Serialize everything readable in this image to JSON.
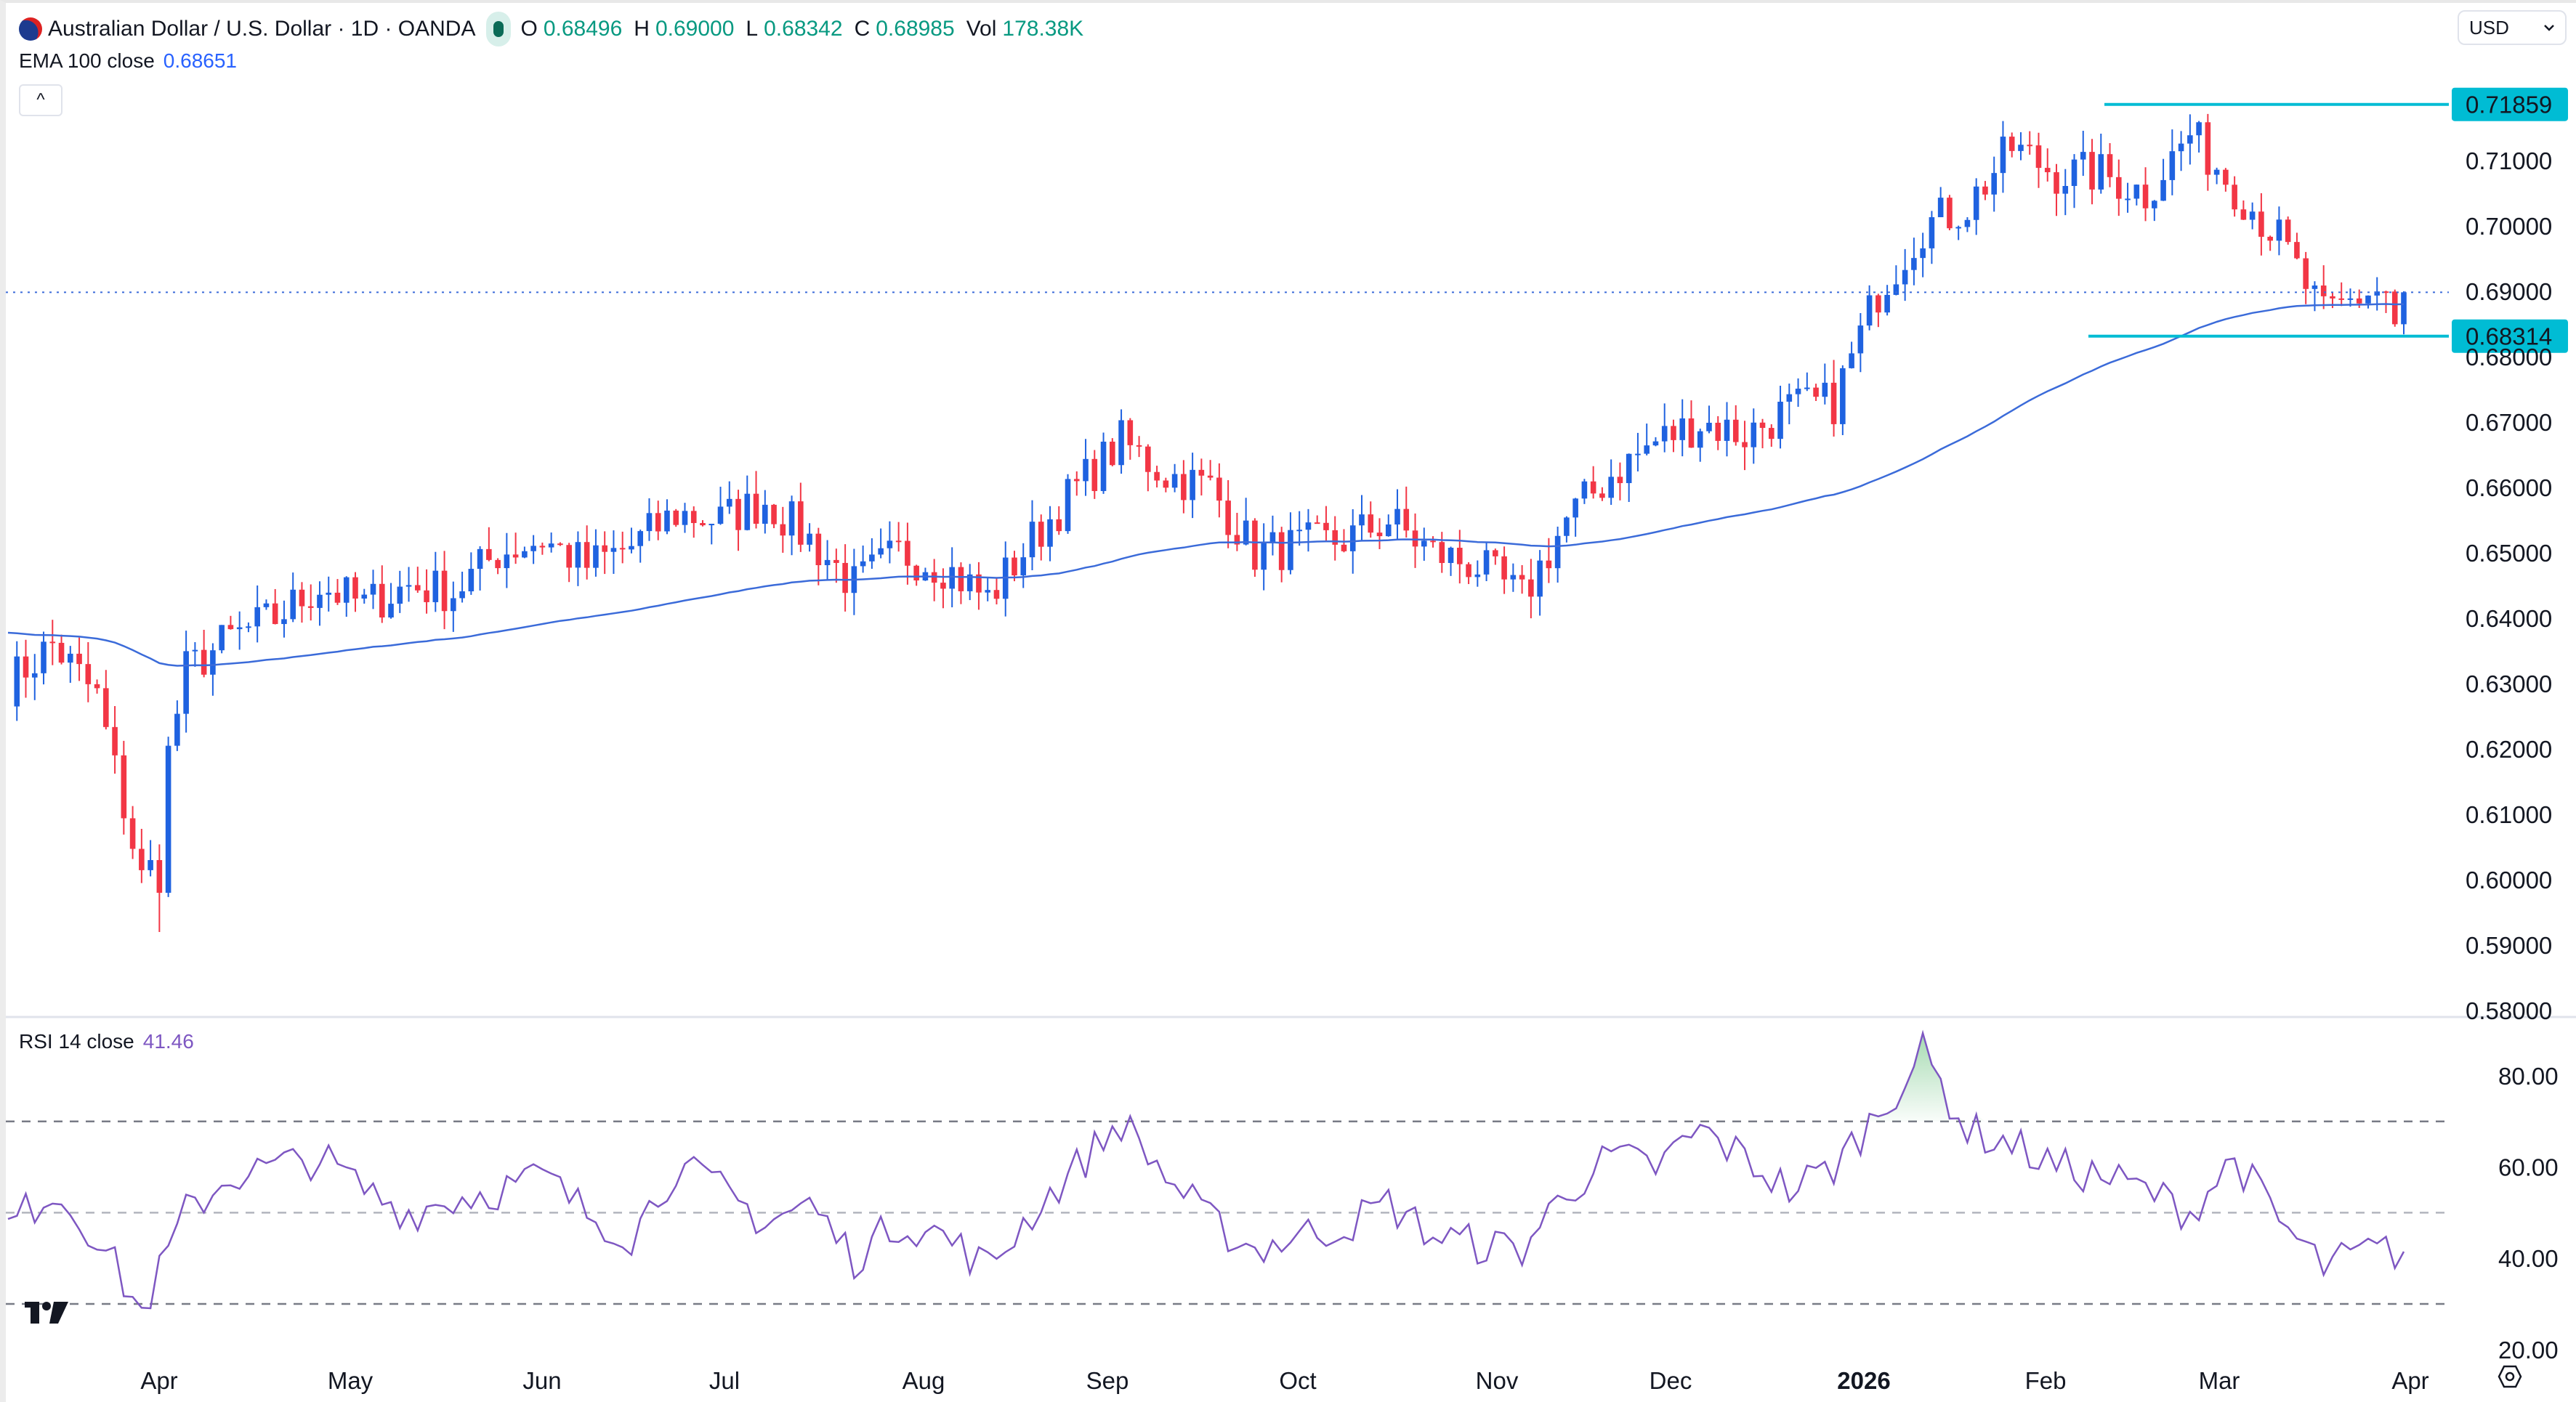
{
  "header": {
    "symbol_title": "Australian Dollar / U.S. Dollar · 1D · OANDA",
    "ohlc": [
      {
        "key": "O",
        "value": "0.68496"
      },
      {
        "key": "H",
        "value": "0.69000"
      },
      {
        "key": "L",
        "value": "0.68342"
      },
      {
        "key": "C",
        "value": "0.68985"
      },
      {
        "key": "Vol",
        "value": "178.38K"
      }
    ],
    "ema_label": "EMA 100 close",
    "ema_value": "0.68651",
    "collapse_icon": "^",
    "currency_select": "USD"
  },
  "rsi_legend": {
    "label": "RSI 14 close",
    "value": "41.46"
  },
  "colors": {
    "up": "#1f62e0",
    "down": "#f23645",
    "ema": "#3b6bd9",
    "rsi": "#7e57c2",
    "hline": "#00bcd4",
    "last_price_line": "#3b6bd9"
  },
  "chart_data": [
    {
      "type": "candlestick",
      "title": "Australian Dollar / U.S. Dollar · 1D · OANDA",
      "interval": "1D",
      "weekly_closes_approx": [
        0.63,
        0.636,
        0.628,
        0.6,
        0.632,
        0.637,
        0.64,
        0.645,
        0.642,
        0.645,
        0.644,
        0.65,
        0.652,
        0.648,
        0.651,
        0.656,
        0.655,
        0.658,
        0.652,
        0.645,
        0.65,
        0.648,
        0.643,
        0.652,
        0.66,
        0.667,
        0.662,
        0.66,
        0.65,
        0.651,
        0.652,
        0.655,
        0.65,
        0.648,
        0.643,
        0.655,
        0.662,
        0.667,
        0.67,
        0.668,
        0.672,
        0.673,
        0.69,
        0.7,
        0.703,
        0.712,
        0.708,
        0.708,
        0.705,
        0.714,
        0.706,
        0.698,
        0.686,
        0.69
      ],
      "april_low": 0.592,
      "last_candle": {
        "open": 0.68496,
        "high": 0.69,
        "low": 0.68342,
        "close": 0.68985
      },
      "ema_period": 100,
      "ema_seed": 0.638,
      "ylim": [
        0.58,
        0.72
      ],
      "y_ticks": [
        "0.71000",
        "0.70000",
        "0.69000",
        "0.68000",
        "0.67000",
        "0.66000",
        "0.65000",
        "0.64000",
        "0.63000",
        "0.62000",
        "0.61000",
        "0.60000",
        "0.59000",
        "0.58000"
      ],
      "horizontal_lines": [
        {
          "label": "0.71859",
          "value": 0.71859
        },
        {
          "label": "0.68314",
          "value": 0.68314
        }
      ],
      "x_ticks": [
        "Apr",
        "May",
        "Jun",
        "Jul",
        "Aug",
        "Sep",
        "Oct",
        "Nov",
        "Dec",
        "2026",
        "Feb",
        "Mar",
        "Apr"
      ]
    },
    {
      "type": "line",
      "title": "RSI 14 close",
      "weekly_values_approx": [
        47,
        55,
        45,
        28,
        50,
        58,
        60,
        62,
        55,
        50,
        53,
        55,
        58,
        50,
        45,
        60,
        55,
        48,
        52,
        40,
        48,
        45,
        38,
        50,
        60,
        70,
        58,
        48,
        42,
        45,
        47,
        52,
        45,
        43,
        42,
        55,
        62,
        60,
        68,
        62,
        55,
        60,
        72,
        85,
        68,
        65,
        60,
        58,
        55,
        50,
        62,
        48,
        38,
        41.46
      ],
      "ylim": [
        20,
        85
      ],
      "y_ticks": [
        "80.00",
        "60.00",
        "40.00",
        "20.00"
      ],
      "bands": [
        70,
        50,
        30
      ]
    }
  ]
}
